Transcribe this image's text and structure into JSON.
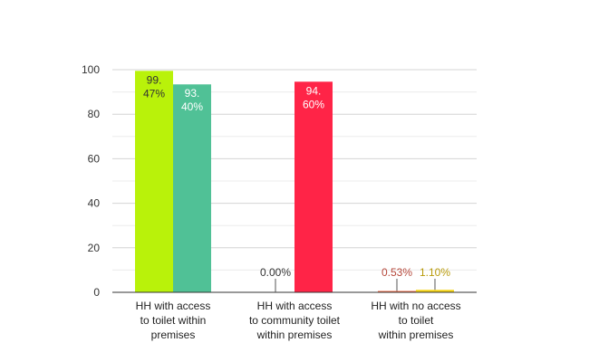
{
  "chart_data": {
    "type": "bar",
    "title": "",
    "xlabel": "",
    "ylabel": "",
    "ylim": [
      0,
      100
    ],
    "yticks": [
      0,
      20,
      40,
      60,
      80,
      100
    ],
    "grid": true,
    "categories": [
      [
        "HH with access",
        "to toilet within",
        "premises"
      ],
      [
        "HH with access",
        "to community toilet",
        "within premises"
      ],
      [
        "HH with no access",
        "to toilet",
        "within premises"
      ]
    ],
    "bars": [
      {
        "category": 0,
        "value": 99.47,
        "label_lines": [
          "99.",
          "47%"
        ],
        "color": "#B9F20A",
        "label_color": "#333333",
        "label_inside": true
      },
      {
        "category": 0,
        "value": 93.4,
        "label_lines": [
          "93.",
          "40%"
        ],
        "color": "#50C196",
        "label_color": "#ffffff",
        "label_inside": true
      },
      {
        "category": 1,
        "value": 0.0,
        "label_lines": [
          "0.00%"
        ],
        "color": "#9BD62A",
        "label_color": "#333333",
        "label_inside": false
      },
      {
        "category": 1,
        "value": 94.6,
        "label_lines": [
          "94.",
          "60%"
        ],
        "color": "#FF2447",
        "label_color": "#ffffff",
        "label_inside": true
      },
      {
        "category": 2,
        "value": 0.53,
        "label_lines": [
          "0.53%"
        ],
        "color": "#F26D4A",
        "label_color": "#B5473A",
        "label_inside": false
      },
      {
        "category": 2,
        "value": 1.1,
        "label_lines": [
          "1.10%"
        ],
        "color": "#F5D311",
        "label_color": "#B89A0A",
        "label_inside": false
      }
    ]
  }
}
